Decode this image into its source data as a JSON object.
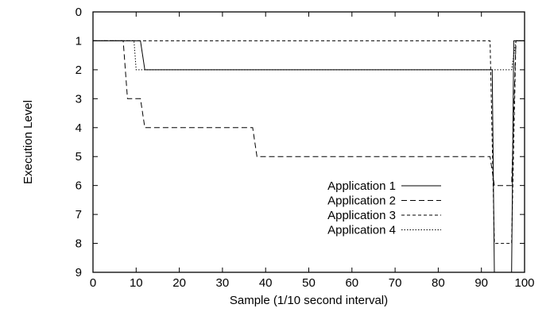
{
  "chart_data": {
    "type": "line",
    "title": "",
    "xlabel": "Sample (1/10 second interval)",
    "ylabel": "Execution Level",
    "xlim": [
      0,
      100
    ],
    "ylim": [
      0,
      9
    ],
    "y_inverted": true,
    "grid": false,
    "legend_position": "inside-lower-right",
    "x_ticks": [
      0,
      10,
      20,
      30,
      40,
      50,
      60,
      70,
      80,
      90,
      100
    ],
    "y_ticks": [
      0,
      1,
      2,
      3,
      4,
      5,
      6,
      7,
      8,
      9
    ],
    "series": [
      {
        "name": "Application 1",
        "dash": "",
        "x": [
          0,
          11,
          12,
          92.5,
          93,
          97,
          97.5,
          100
        ],
        "y": [
          1,
          1,
          2,
          2,
          9,
          9,
          1,
          1
        ]
      },
      {
        "name": "Application 2",
        "dash": "7,4",
        "x": [
          0,
          7,
          8,
          10,
          11,
          12,
          37,
          38,
          92,
          93,
          97,
          98,
          100
        ],
        "y": [
          1,
          1,
          3,
          3,
          3,
          4,
          4,
          5,
          5,
          6,
          6,
          1,
          1
        ]
      },
      {
        "name": "Application 3",
        "dash": "4,3",
        "x": [
          0,
          8,
          9,
          92,
          93,
          97,
          98,
          100
        ],
        "y": [
          1,
          1,
          1,
          1,
          8,
          8,
          1,
          1
        ]
      },
      {
        "name": "Application 4",
        "dash": "1.5,2",
        "x": [
          0,
          9.5,
          10,
          95,
          97,
          98,
          100
        ],
        "y": [
          1,
          1,
          2,
          2,
          2,
          1,
          1
        ]
      }
    ]
  }
}
